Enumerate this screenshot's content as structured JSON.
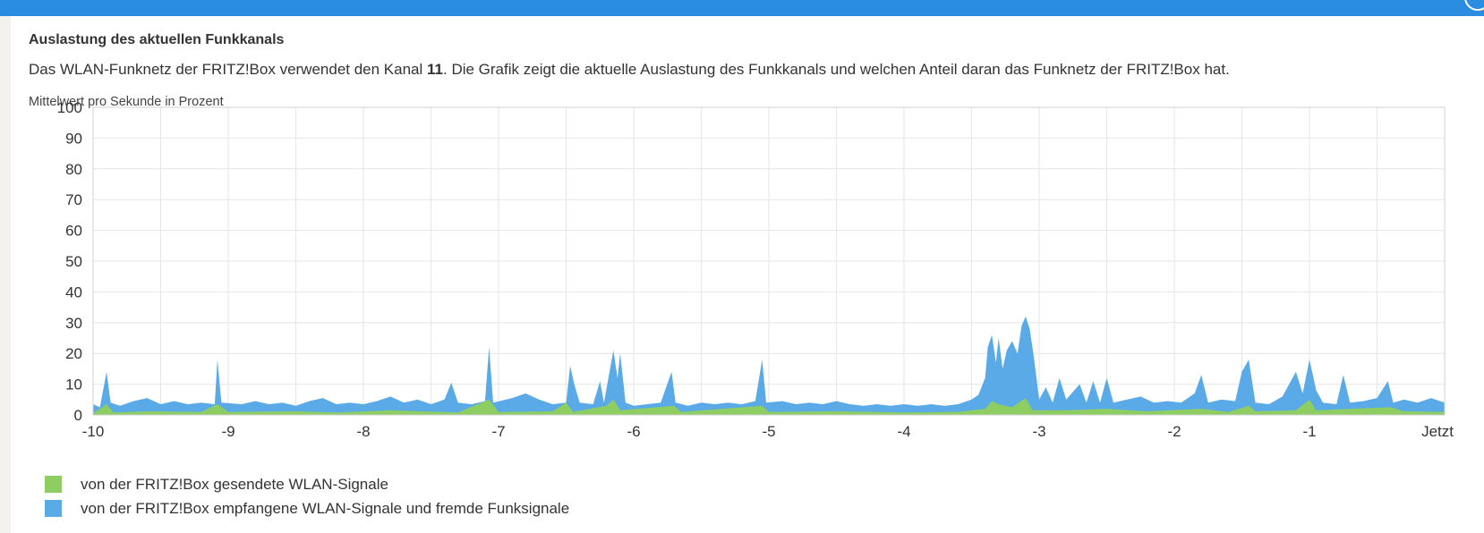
{
  "header": {
    "title": "Auslastung des aktuellen Funkkanals",
    "desc_before": "Das WLAN-Funknetz der FRITZ!Box verwendet den Kanal ",
    "channel": "11",
    "desc_after": ". Die Grafik zeigt die aktuelle Auslastung des Funkkanals und welchen Anteil daran das Funknetz der FRITZ!Box hat.",
    "unit_label": "Mittelwert pro Sekunde in Prozent"
  },
  "colors": {
    "sent": "#8dcd62",
    "received": "#5aaae7",
    "grid": "#e6e6e6",
    "topbar": "#2a8de0"
  },
  "chart_data": {
    "type": "area",
    "xlim": [
      -10,
      0
    ],
    "ylim": [
      0,
      100
    ],
    "xticks": [
      "-10",
      "-9",
      "-8",
      "-7",
      "-6",
      "-5",
      "-4",
      "-3",
      "-2",
      "-1",
      "Jetzt"
    ],
    "yticks": [
      "100",
      "90",
      "80",
      "70",
      "60",
      "50",
      "40",
      "30",
      "20",
      "10",
      "0"
    ],
    "grid": true,
    "legend_position": "bottom-left",
    "series": [
      {
        "name": "von der FRITZ!Box gesendete WLAN-Signale",
        "color": "#8dcd62",
        "points": [
          [
            -10,
            0.5
          ],
          [
            -9.9,
            3.5
          ],
          [
            -9.85,
            0.8
          ],
          [
            -9.6,
            1.2
          ],
          [
            -9.2,
            1.0
          ],
          [
            -9.08,
            3.5
          ],
          [
            -9.0,
            1.0
          ],
          [
            -8.5,
            1.2
          ],
          [
            -8.2,
            0.8
          ],
          [
            -7.8,
            1.5
          ],
          [
            -7.3,
            0.8
          ],
          [
            -7.07,
            5.0
          ],
          [
            -7.0,
            1.0
          ],
          [
            -6.6,
            1.2
          ],
          [
            -6.5,
            4.0
          ],
          [
            -6.45,
            1.0
          ],
          [
            -6.2,
            3.0
          ],
          [
            -6.15,
            5.0
          ],
          [
            -6.1,
            1.5
          ],
          [
            -5.7,
            3.0
          ],
          [
            -5.65,
            1.0
          ],
          [
            -5.05,
            3.0
          ],
          [
            -5.0,
            1.0
          ],
          [
            -4.5,
            1.2
          ],
          [
            -4.0,
            0.8
          ],
          [
            -3.6,
            1.0
          ],
          [
            -3.4,
            2.0
          ],
          [
            -3.35,
            4.5
          ],
          [
            -3.3,
            3.5
          ],
          [
            -3.2,
            2.5
          ],
          [
            -3.1,
            5.5
          ],
          [
            -3.05,
            1.5
          ],
          [
            -2.8,
            1.5
          ],
          [
            -2.5,
            2.0
          ],
          [
            -2.2,
            1.2
          ],
          [
            -1.8,
            2.0
          ],
          [
            -1.6,
            1.0
          ],
          [
            -1.45,
            3.0
          ],
          [
            -1.4,
            1.2
          ],
          [
            -1.1,
            1.5
          ],
          [
            -1.0,
            5.0
          ],
          [
            -0.95,
            1.5
          ],
          [
            -0.7,
            2.0
          ],
          [
            -0.4,
            2.5
          ],
          [
            -0.3,
            1.2
          ],
          [
            0,
            1.0
          ]
        ]
      },
      {
        "name": "von der FRITZ!Box empfangene WLAN-Signale und fremde Funksignale",
        "color": "#5aaae7",
        "points": [
          [
            -10,
            3.5
          ],
          [
            -9.95,
            2.5
          ],
          [
            -9.9,
            14.0
          ],
          [
            -9.87,
            4.0
          ],
          [
            -9.8,
            3.0
          ],
          [
            -9.7,
            4.5
          ],
          [
            -9.6,
            5.5
          ],
          [
            -9.5,
            3.5
          ],
          [
            -9.4,
            4.5
          ],
          [
            -9.3,
            3.5
          ],
          [
            -9.2,
            4.0
          ],
          [
            -9.1,
            3.5
          ],
          [
            -9.08,
            18.0
          ],
          [
            -9.05,
            4.0
          ],
          [
            -8.9,
            3.5
          ],
          [
            -8.8,
            4.5
          ],
          [
            -8.7,
            3.5
          ],
          [
            -8.6,
            4.0
          ],
          [
            -8.5,
            3.0
          ],
          [
            -8.4,
            4.5
          ],
          [
            -8.3,
            5.5
          ],
          [
            -8.2,
            3.5
          ],
          [
            -8.1,
            4.0
          ],
          [
            -8.0,
            3.5
          ],
          [
            -7.9,
            4.5
          ],
          [
            -7.8,
            6.0
          ],
          [
            -7.7,
            4.0
          ],
          [
            -7.6,
            5.0
          ],
          [
            -7.5,
            3.5
          ],
          [
            -7.4,
            5.0
          ],
          [
            -7.35,
            10.5
          ],
          [
            -7.3,
            4.0
          ],
          [
            -7.2,
            3.5
          ],
          [
            -7.1,
            4.5
          ],
          [
            -7.07,
            22.0
          ],
          [
            -7.04,
            4.0
          ],
          [
            -6.9,
            5.5
          ],
          [
            -6.8,
            7.0
          ],
          [
            -6.7,
            5.0
          ],
          [
            -6.6,
            3.5
          ],
          [
            -6.5,
            4.0
          ],
          [
            -6.47,
            16.0
          ],
          [
            -6.44,
            10.0
          ],
          [
            -6.4,
            4.0
          ],
          [
            -6.3,
            3.5
          ],
          [
            -6.25,
            11.0
          ],
          [
            -6.22,
            4.0
          ],
          [
            -6.15,
            21.0
          ],
          [
            -6.12,
            12.0
          ],
          [
            -6.1,
            20.0
          ],
          [
            -6.06,
            4.0
          ],
          [
            -6.0,
            3.0
          ],
          [
            -5.9,
            3.5
          ],
          [
            -5.8,
            4.0
          ],
          [
            -5.72,
            14.0
          ],
          [
            -5.69,
            4.0
          ],
          [
            -5.6,
            3.0
          ],
          [
            -5.5,
            4.0
          ],
          [
            -5.4,
            3.5
          ],
          [
            -5.3,
            4.0
          ],
          [
            -5.2,
            3.5
          ],
          [
            -5.1,
            4.5
          ],
          [
            -5.05,
            18.0
          ],
          [
            -5.02,
            4.0
          ],
          [
            -4.9,
            4.5
          ],
          [
            -4.8,
            3.5
          ],
          [
            -4.7,
            4.0
          ],
          [
            -4.6,
            3.5
          ],
          [
            -4.5,
            4.5
          ],
          [
            -4.4,
            3.5
          ],
          [
            -4.3,
            3.0
          ],
          [
            -4.2,
            3.5
          ],
          [
            -4.1,
            3.0
          ],
          [
            -4.0,
            3.5
          ],
          [
            -3.9,
            3.0
          ],
          [
            -3.8,
            3.5
          ],
          [
            -3.7,
            3.0
          ],
          [
            -3.6,
            3.5
          ],
          [
            -3.5,
            5.0
          ],
          [
            -3.45,
            6.5
          ],
          [
            -3.4,
            12.0
          ],
          [
            -3.38,
            22.0
          ],
          [
            -3.35,
            26.0
          ],
          [
            -3.32,
            17.0
          ],
          [
            -3.3,
            25.0
          ],
          [
            -3.27,
            15.0
          ],
          [
            -3.24,
            21.0
          ],
          [
            -3.2,
            24.0
          ],
          [
            -3.16,
            20.0
          ],
          [
            -3.13,
            29.0
          ],
          [
            -3.1,
            32.0
          ],
          [
            -3.07,
            28.0
          ],
          [
            -3.04,
            19.0
          ],
          [
            -3.0,
            5.0
          ],
          [
            -2.95,
            9.0
          ],
          [
            -2.9,
            4.0
          ],
          [
            -2.85,
            12.0
          ],
          [
            -2.8,
            5.0
          ],
          [
            -2.7,
            10.0
          ],
          [
            -2.65,
            4.0
          ],
          [
            -2.6,
            11.0
          ],
          [
            -2.55,
            4.0
          ],
          [
            -2.5,
            12.0
          ],
          [
            -2.45,
            4.0
          ],
          [
            -2.35,
            5.0
          ],
          [
            -2.25,
            6.0
          ],
          [
            -2.15,
            4.0
          ],
          [
            -2.05,
            4.5
          ],
          [
            -1.95,
            4.0
          ],
          [
            -1.85,
            7.0
          ],
          [
            -1.8,
            13.0
          ],
          [
            -1.75,
            4.0
          ],
          [
            -1.65,
            5.0
          ],
          [
            -1.55,
            4.5
          ],
          [
            -1.5,
            14.0
          ],
          [
            -1.45,
            18.0
          ],
          [
            -1.4,
            4.0
          ],
          [
            -1.3,
            3.5
          ],
          [
            -1.2,
            6.0
          ],
          [
            -1.1,
            14.0
          ],
          [
            -1.05,
            7.0
          ],
          [
            -1.0,
            18.0
          ],
          [
            -0.95,
            8.0
          ],
          [
            -0.9,
            4.0
          ],
          [
            -0.8,
            3.5
          ],
          [
            -0.75,
            13.0
          ],
          [
            -0.7,
            4.0
          ],
          [
            -0.6,
            4.5
          ],
          [
            -0.5,
            5.5
          ],
          [
            -0.42,
            11.0
          ],
          [
            -0.38,
            4.0
          ],
          [
            -0.3,
            5.0
          ],
          [
            -0.2,
            4.0
          ],
          [
            -0.1,
            5.5
          ],
          [
            0,
            4.0
          ]
        ]
      }
    ]
  }
}
